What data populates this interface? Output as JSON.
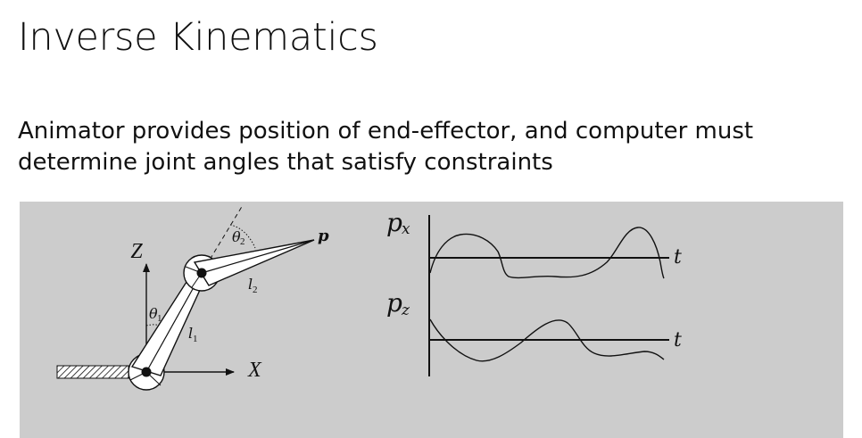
{
  "slide": {
    "title": "Inverse Kinematics",
    "body_lines": [
      "Animator provides position of end-effector, and computer must",
      "determine joint angles that satisfy constraints"
    ]
  },
  "figure": {
    "arm": {
      "axis_z_label": "Z",
      "axis_x_label": "X",
      "theta1_label": "θ",
      "theta1_sub": "1",
      "theta2_label": "θ",
      "theta2_sub": "2",
      "l1_label": "l",
      "l1_sub": "1",
      "l2_label": "l",
      "l2_sub": "2",
      "end_effector_label": "p"
    },
    "plots": {
      "px_label": "p",
      "px_sub": "x",
      "pz_label": "p",
      "pz_sub": "z",
      "t_label_top": "t",
      "t_label_bottom": "t"
    }
  },
  "colors": {
    "panel_bg": "#cccccc",
    "ink": "#111111"
  }
}
